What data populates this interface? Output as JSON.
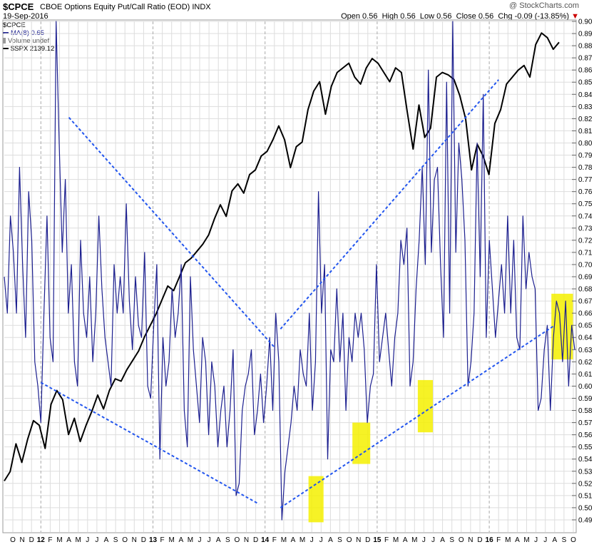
{
  "header": {
    "symbol": "$CPCE",
    "description": "CBOE Options Equity Put/Call Ratio (EOD)  INDX",
    "date": "19-Sep-2016",
    "watermark": "@ StockCharts.com",
    "open_label": "Open",
    "open": "0.56",
    "high_label": "High",
    "high": "0.56",
    "low_label": "Low",
    "low": "0.56",
    "close_label": "Close",
    "close": "0.56",
    "chg_label": "Chg",
    "chg": "-0.09 (-13.85%)",
    "chg_marker": "▼"
  },
  "legend": {
    "symbol": "$CPCE",
    "ma": "MA(8) 0.65",
    "volume": "Volume undef",
    "spx": "$SPX 2139.12"
  },
  "colors": {
    "cpce": "#1c1f8f",
    "trend": "#2255ee",
    "spx": "#000000",
    "highlight": "#f5f000",
    "grid": "#dddddd",
    "year_grid": "#aaaaaa"
  },
  "chart_data": {
    "type": "line",
    "y_axis": {
      "side": "right",
      "ylim": [
        0.48,
        0.9
      ],
      "tick_step": 0.01,
      "ticks": [
        "0.49",
        "0.50",
        "0.51",
        "0.52",
        "0.53",
        "0.54",
        "0.55",
        "0.56",
        "0.57",
        "0.58",
        "0.59",
        "0.60",
        "0.61",
        "0.62",
        "0.63",
        "0.64",
        "0.65",
        "0.66",
        "0.67",
        "0.68",
        "0.69",
        "0.70",
        "0.71",
        "0.72",
        "0.73",
        "0.74",
        "0.75",
        "0.76",
        "0.77",
        "0.78",
        "0.79",
        "0.80",
        "0.81",
        "0.82",
        "0.83",
        "0.84",
        "0.85",
        "0.86",
        "0.87",
        "0.88",
        "0.89",
        "0.90"
      ]
    },
    "x_axis": {
      "labels": [
        "O",
        "N",
        "D",
        "12",
        "F",
        "M",
        "A",
        "M",
        "J",
        "J",
        "A",
        "S",
        "O",
        "N",
        "D",
        "13",
        "F",
        "M",
        "A",
        "M",
        "J",
        "J",
        "A",
        "S",
        "O",
        "N",
        "D",
        "14",
        "F",
        "M",
        "A",
        "M",
        "J",
        "J",
        "A",
        "S",
        "O",
        "N",
        "D",
        "15",
        "F",
        "M",
        "A",
        "M",
        "J",
        "J",
        "A",
        "S",
        "O",
        "N",
        "D",
        "16",
        "F",
        "M",
        "A",
        "M",
        "J",
        "J",
        "A",
        "S",
        "O"
      ],
      "year_labels": [
        "12",
        "13",
        "14",
        "15",
        "16"
      ]
    },
    "grid": true,
    "series": [
      {
        "name": "MA(8) 0.65",
        "values": [
          0.69,
          0.66,
          0.74,
          0.71,
          0.66,
          0.78,
          0.7,
          0.64,
          0.76,
          0.72,
          0.62,
          0.6,
          0.57,
          0.66,
          0.74,
          0.64,
          0.62,
          0.9,
          0.8,
          0.71,
          0.77,
          0.66,
          0.7,
          0.62,
          0.6,
          0.72,
          0.66,
          0.64,
          0.69,
          0.62,
          0.66,
          0.74,
          0.68,
          0.64,
          0.62,
          0.6,
          0.7,
          0.66,
          0.69,
          0.66,
          0.75,
          0.67,
          0.63,
          0.69,
          0.65,
          0.64,
          0.71,
          0.6,
          0.59,
          0.65,
          0.7,
          0.54,
          0.64,
          0.6,
          0.62,
          0.68,
          0.64,
          0.66,
          0.7,
          0.58,
          0.55,
          0.69,
          0.63,
          0.6,
          0.57,
          0.64,
          0.62,
          0.56,
          0.62,
          0.6,
          0.55,
          0.58,
          0.6,
          0.55,
          0.58,
          0.63,
          0.51,
          0.52,
          0.58,
          0.6,
          0.61,
          0.63,
          0.56,
          0.58,
          0.61,
          0.57,
          0.6,
          0.64,
          0.58,
          0.66,
          0.62,
          0.49,
          0.53,
          0.55,
          0.57,
          0.6,
          0.58,
          0.63,
          0.61,
          0.6,
          0.66,
          0.58,
          0.62,
          0.76,
          0.66,
          0.7,
          0.54,
          0.63,
          0.62,
          0.68,
          0.62,
          0.66,
          0.58,
          0.64,
          0.62,
          0.66,
          0.64,
          0.66,
          0.63,
          0.57,
          0.6,
          0.61,
          0.7,
          0.62,
          0.64,
          0.66,
          0.63,
          0.6,
          0.64,
          0.66,
          0.72,
          0.7,
          0.73,
          0.6,
          0.62,
          0.68,
          0.72,
          0.78,
          0.7,
          0.86,
          0.71,
          0.77,
          0.78,
          0.7,
          0.64,
          0.85,
          0.66,
          0.9,
          0.71,
          0.8,
          0.77,
          0.72,
          0.6,
          0.62,
          0.66,
          0.8,
          0.69,
          0.84,
          0.64,
          0.72,
          0.68,
          0.64,
          0.67,
          0.7,
          0.66,
          0.74,
          0.66,
          0.72,
          0.64,
          0.63,
          0.74,
          0.68,
          0.71,
          0.69,
          0.68,
          0.58,
          0.59,
          0.63,
          0.65,
          0.58,
          0.64,
          0.67,
          0.66,
          0.62,
          0.67,
          0.6,
          0.65,
          0.63
        ]
      },
      {
        "name": "$SPX 2139.12",
        "values": [
          1210,
          1230,
          1290,
          1250,
          1300,
          1340,
          1330,
          1280,
          1375,
          1405,
          1385,
          1310,
          1345,
          1295,
          1330,
          1360,
          1395,
          1365,
          1405,
          1430,
          1425,
          1450,
          1470,
          1490,
          1520,
          1545,
          1570,
          1600,
          1630,
          1620,
          1650,
          1680,
          1690,
          1705,
          1720,
          1740,
          1775,
          1805,
          1780,
          1835,
          1850,
          1830,
          1870,
          1880,
          1910,
          1920,
          1945,
          1975,
          1945,
          1885,
          1930,
          1940,
          2010,
          2050,
          2070,
          2000,
          2060,
          2090,
          2100,
          2110,
          2080,
          2065,
          2100,
          2120,
          2110,
          2090,
          2070,
          2100,
          2090,
          2005,
          1925,
          2020,
          1950,
          1970,
          2080,
          2090,
          2085,
          2075,
          2040,
          1990,
          1880,
          1935,
          1910,
          1870,
          1980,
          2010,
          2065,
          2080,
          2095,
          2105,
          2080,
          2150,
          2175,
          2165,
          2140,
          2155
        ]
      }
    ],
    "trendlines": [
      {
        "from": [
          "start of 2012",
          0.603
        ],
        "to": [
          "late Dec 2013",
          0.503
        ]
      },
      {
        "from": [
          "mid Apr 2012",
          0.821
        ],
        "to": [
          "mid Feb 2014",
          0.632
        ]
      },
      {
        "from": [
          "early Mar 2014",
          0.647
        ],
        "to": [
          "mid Feb 2016",
          0.852
        ]
      },
      {
        "from": [
          "early Mar 2014",
          0.5
        ],
        "to": [
          "mid Aug 2016",
          0.65
        ]
      }
    ],
    "highlights": [
      {
        "from": "early Jun 2014",
        "to": "early Jul 2014",
        "ylim": [
          0.488,
          0.526
        ]
      },
      {
        "from": "late Oct 2014",
        "to": "early Dec 2014",
        "ylim": [
          0.536,
          0.57
        ]
      },
      {
        "from": "late May 2015",
        "to": "late Jun 2015",
        "ylim": [
          0.562,
          0.605
        ]
      },
      {
        "from": "early Aug 2016",
        "to": "late Sep 2016",
        "ylim": [
          0.622,
          0.676
        ]
      }
    ]
  }
}
